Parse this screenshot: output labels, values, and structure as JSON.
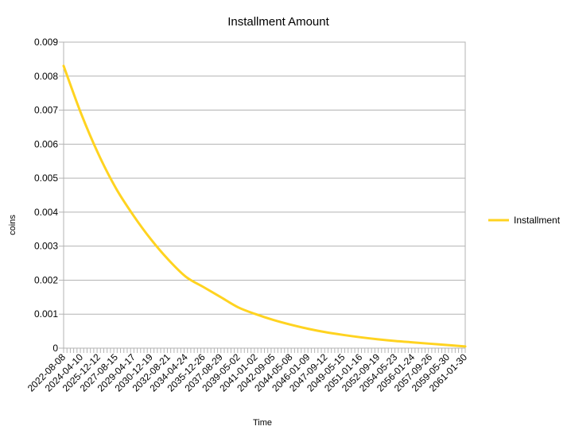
{
  "chart_data": {
    "type": "line",
    "title": "Installment Amount",
    "xlabel": "Time",
    "ylabel": "coins",
    "ylim": [
      0,
      0.009
    ],
    "y_ticks": [
      "0",
      "0.001",
      "0.002",
      "0.003",
      "0.004",
      "0.005",
      "0.006",
      "0.007",
      "0.008",
      "0.009"
    ],
    "x_tick_labels": [
      "2022-08-08",
      "2024-04-10",
      "2025-12-12",
      "2027-08-15",
      "2029-04-17",
      "2030-12-19",
      "2032-08-21",
      "2034-04-24",
      "2035-12-26",
      "2037-08-29",
      "2039-05-02",
      "2041-01-02",
      "2042-09-05",
      "2044-05-08",
      "2046-01-09",
      "2047-09-12",
      "2049-05-15",
      "2051-01-16",
      "2052-09-19",
      "2054-05-23",
      "2056-01-24",
      "2057-09-26",
      "2059-05-30",
      "2061-01-30"
    ],
    "grid": "horizontal",
    "legend_position": "right",
    "series": [
      {
        "name": "Installment",
        "color": "#ffd320",
        "x": [
          "2022-08-08",
          "2024-04-10",
          "2025-12-12",
          "2027-08-15",
          "2029-04-17",
          "2030-12-19",
          "2032-08-21",
          "2034-04-24",
          "2035-12-26",
          "2037-08-29",
          "2039-05-02",
          "2041-01-02",
          "2042-09-05",
          "2044-05-08",
          "2046-01-09",
          "2047-09-12",
          "2049-05-15",
          "2051-01-16",
          "2052-09-19",
          "2054-05-23",
          "2056-01-24",
          "2057-09-26",
          "2059-05-30",
          "2061-01-30"
        ],
        "values": [
          0.0083,
          0.0069,
          0.0057,
          0.0047,
          0.0039,
          0.0032,
          0.0026,
          0.0021,
          0.0018,
          0.0015,
          0.0012,
          0.001,
          0.00083,
          0.00069,
          0.00057,
          0.00047,
          0.00039,
          0.00032,
          0.00026,
          0.00021,
          0.00017,
          0.00013,
          9e-05,
          5e-05
        ]
      }
    ]
  }
}
